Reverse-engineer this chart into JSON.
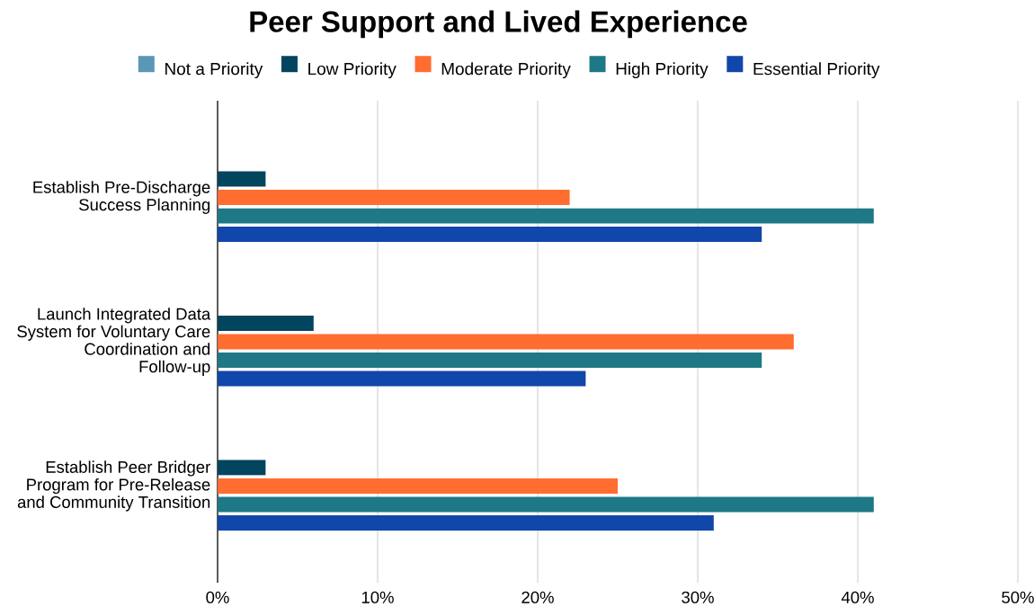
{
  "chart_data": {
    "type": "bar",
    "orientation": "horizontal",
    "title": "Peer Support and Lived Experience",
    "categories": [
      "Establish Pre-Discharge Success Planning",
      "Launch Integrated Data System for Voluntary Care Coordination and Follow-up",
      "Establish Peer Bridger Program for Pre-Release and Community Transition"
    ],
    "series": [
      {
        "name": "Not a Priority",
        "color": "#5a96b8",
        "values": [
          0,
          0,
          0
        ]
      },
      {
        "name": "Low Priority",
        "color": "#03455f",
        "values": [
          3,
          6,
          3
        ]
      },
      {
        "name": "Moderate Priority",
        "color": "#ff6d31",
        "values": [
          22,
          36,
          25
        ]
      },
      {
        "name": "High Priority",
        "color": "#1e7886",
        "values": [
          41,
          34,
          41
        ]
      },
      {
        "name": "Essential Priority",
        "color": "#1146aa",
        "values": [
          34,
          23,
          31
        ]
      }
    ],
    "xlim": [
      0,
      50
    ],
    "xticks": [
      {
        "value": 0,
        "label": "0%"
      },
      {
        "value": 10,
        "label": "10%"
      },
      {
        "value": 20,
        "label": "20%"
      },
      {
        "value": 30,
        "label": "30%"
      },
      {
        "value": 40,
        "label": "40%"
      },
      {
        "value": 50,
        "label": "50%"
      }
    ],
    "grid": "x",
    "legend": "top"
  }
}
